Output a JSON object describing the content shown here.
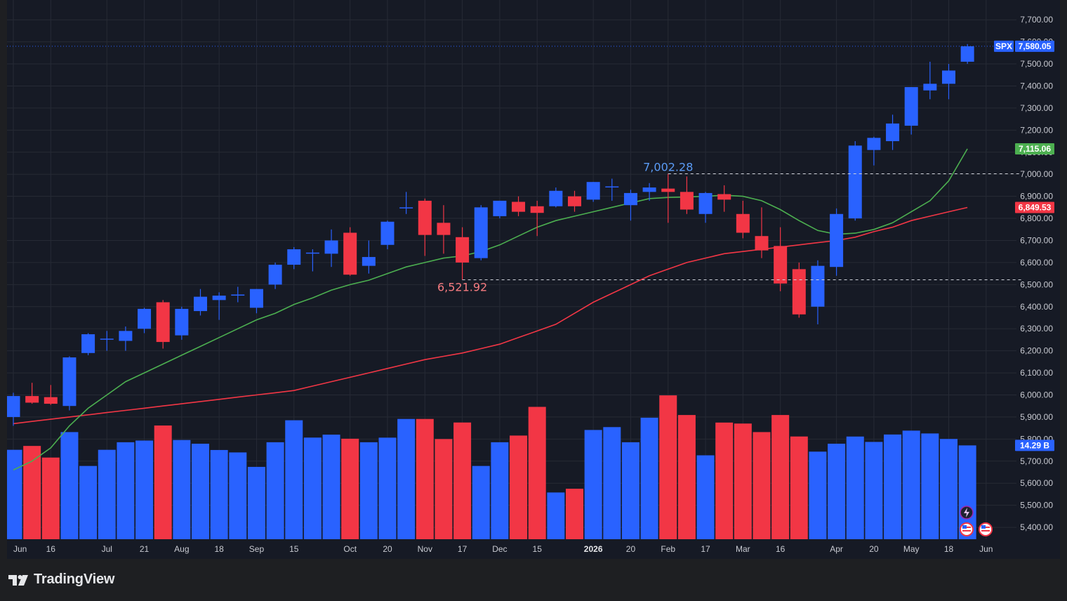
{
  "branding": {
    "name": "TradingView"
  },
  "colors": {
    "up": "#2962ff",
    "down": "#f23645",
    "ma_short": "#4caf50",
    "ma_long": "#f23645",
    "grid": "#262a35",
    "axis_text": "#c9cbd2",
    "background": "#161a25"
  },
  "chart_data": {
    "type": "candlestick",
    "symbol": "SPX",
    "y_ticks": [
      "7,700.00",
      "7,600.00",
      "7,500.00",
      "7,400.00",
      "7,300.00",
      "7,200.00",
      "7,100.00",
      "7,000.00",
      "6,900.00",
      "6,800.00",
      "6,700.00",
      "6,600.00",
      "6,500.00",
      "6,400.00",
      "6,300.00",
      "6,200.00",
      "6,100.00",
      "6,000.00",
      "5,900.00",
      "5,800.00",
      "5,700.00",
      "5,600.00",
      "5,500.00",
      "5,400.00"
    ],
    "ylim": [
      5360,
      7770
    ],
    "x_ticks": [
      {
        "label": "Jun",
        "i": 0
      },
      {
        "label": "16",
        "i": 2
      },
      {
        "label": "Jul",
        "i": 5
      },
      {
        "label": "21",
        "i": 7
      },
      {
        "label": "Aug",
        "i": 9
      },
      {
        "label": "18",
        "i": 11
      },
      {
        "label": "Sep",
        "i": 13
      },
      {
        "label": "15",
        "i": 15
      },
      {
        "label": "Oct",
        "i": 18
      },
      {
        "label": "20",
        "i": 20
      },
      {
        "label": "Nov",
        "i": 22
      },
      {
        "label": "17",
        "i": 24
      },
      {
        "label": "Dec",
        "i": 26
      },
      {
        "label": "15",
        "i": 28
      },
      {
        "label": "2026",
        "i": 31,
        "year": true
      },
      {
        "label": "20",
        "i": 33
      },
      {
        "label": "Feb",
        "i": 35
      },
      {
        "label": "17",
        "i": 37
      },
      {
        "label": "Mar",
        "i": 39
      },
      {
        "label": "16",
        "i": 41
      },
      {
        "label": "Apr",
        "i": 44
      },
      {
        "label": "20",
        "i": 46
      },
      {
        "label": "May",
        "i": 48
      },
      {
        "label": "18",
        "i": 50
      },
      {
        "label": "Jun",
        "i": 52
      }
    ],
    "candles": [
      {
        "o": 5900,
        "h": 6010,
        "l": 5860,
        "c": 5995,
        "v": 13.62
      },
      {
        "o": 5995,
        "h": 6055,
        "l": 5960,
        "c": 5965,
        "v": 14.21
      },
      {
        "o": 5990,
        "h": 6045,
        "l": 5955,
        "c": 5960,
        "v": 12.44
      },
      {
        "o": 5950,
        "h": 6175,
        "l": 5930,
        "c": 6170,
        "v": 16.32
      },
      {
        "o": 6190,
        "h": 6280,
        "l": 6180,
        "c": 6275,
        "v": 11.16
      },
      {
        "o": 6255,
        "h": 6290,
        "l": 6200,
        "c": 6255,
        "v": 13.62
      },
      {
        "o": 6245,
        "h": 6310,
        "l": 6200,
        "c": 6290,
        "v": 14.77
      },
      {
        "o": 6300,
        "h": 6395,
        "l": 6280,
        "c": 6390,
        "v": 15.03
      },
      {
        "o": 6420,
        "h": 6430,
        "l": 6210,
        "c": 6240,
        "v": 17.32
      },
      {
        "o": 6270,
        "h": 6400,
        "l": 6250,
        "c": 6390,
        "v": 15.11
      },
      {
        "o": 6380,
        "h": 6480,
        "l": 6360,
        "c": 6445,
        "v": 14.55
      },
      {
        "o": 6430,
        "h": 6465,
        "l": 6340,
        "c": 6450,
        "v": 13.59
      },
      {
        "o": 6450,
        "h": 6490,
        "l": 6420,
        "c": 6455,
        "v": 13.22
      },
      {
        "o": 6395,
        "h": 6480,
        "l": 6370,
        "c": 6480,
        "v": 11.02
      },
      {
        "o": 6500,
        "h": 6600,
        "l": 6480,
        "c": 6590,
        "v": 14.77
      },
      {
        "o": 6590,
        "h": 6670,
        "l": 6570,
        "c": 6660,
        "v": 18.12
      },
      {
        "o": 6645,
        "h": 6660,
        "l": 6560,
        "c": 6645,
        "v": 15.48
      },
      {
        "o": 6640,
        "h": 6750,
        "l": 6580,
        "c": 6700,
        "v": 15.93
      },
      {
        "o": 6735,
        "h": 6760,
        "l": 6540,
        "c": 6545,
        "v": 15.31
      },
      {
        "o": 6585,
        "h": 6700,
        "l": 6550,
        "c": 6625,
        "v": 14.77
      },
      {
        "o": 6680,
        "h": 6790,
        "l": 6660,
        "c": 6785,
        "v": 15.47
      },
      {
        "o": 6850,
        "h": 6920,
        "l": 6820,
        "c": 6850,
        "v": 18.32
      },
      {
        "o": 6880,
        "h": 6890,
        "l": 6630,
        "c": 6725,
        "v": 18.32
      },
      {
        "o": 6780,
        "h": 6860,
        "l": 6640,
        "c": 6725,
        "v": 15.26
      },
      {
        "o": 6715,
        "h": 6760,
        "l": 6521.92,
        "c": 6600,
        "v": 17.78
      },
      {
        "o": 6620,
        "h": 6860,
        "l": 6610,
        "c": 6850,
        "v": 11.16
      },
      {
        "o": 6810,
        "h": 6880,
        "l": 6800,
        "c": 6880,
        "v": 14.77
      },
      {
        "o": 6875,
        "h": 6900,
        "l": 6810,
        "c": 6830,
        "v": 15.79
      },
      {
        "o": 6855,
        "h": 6880,
        "l": 6720,
        "c": 6825,
        "v": 20.16
      },
      {
        "o": 6855,
        "h": 6940,
        "l": 6850,
        "c": 6925,
        "v": 7.12
      },
      {
        "o": 6900,
        "h": 6925,
        "l": 6830,
        "c": 6855,
        "v": 7.69
      },
      {
        "o": 6885,
        "h": 6965,
        "l": 6875,
        "c": 6965,
        "v": 16.64
      },
      {
        "o": 6945,
        "h": 6980,
        "l": 6880,
        "c": 6945,
        "v": 17.08
      },
      {
        "o": 6860,
        "h": 6930,
        "l": 6790,
        "c": 6915,
        "v": 14.77
      },
      {
        "o": 6920,
        "h": 6960,
        "l": 6880,
        "c": 6940,
        "v": 18.51
      },
      {
        "o": 6935,
        "h": 7002.28,
        "l": 6780,
        "c": 6920,
        "v": 21.91
      },
      {
        "o": 6920,
        "h": 6990,
        "l": 6820,
        "c": 6840,
        "v": 18.92
      },
      {
        "o": 6820,
        "h": 6920,
        "l": 6780,
        "c": 6915,
        "v": 12.78
      },
      {
        "o": 6910,
        "h": 6950,
        "l": 6830,
        "c": 6885,
        "v": 17.77
      },
      {
        "o": 6820,
        "h": 6880,
        "l": 6710,
        "c": 6735,
        "v": 17.62
      },
      {
        "o": 6720,
        "h": 6850,
        "l": 6620,
        "c": 6655,
        "v": 16.32
      },
      {
        "o": 6675,
        "h": 6760,
        "l": 6470,
        "c": 6505,
        "v": 18.92
      },
      {
        "o": 6570,
        "h": 6600,
        "l": 6350,
        "c": 6365,
        "v": 15.65
      },
      {
        "o": 6400,
        "h": 6610,
        "l": 6320,
        "c": 6585,
        "v": 13.34
      },
      {
        "o": 6580,
        "h": 6845,
        "l": 6540,
        "c": 6820,
        "v": 14.55
      },
      {
        "o": 6800,
        "h": 7150,
        "l": 6790,
        "c": 7130,
        "v": 15.64
      },
      {
        "o": 7110,
        "h": 7170,
        "l": 7040,
        "c": 7165,
        "v": 14.82
      },
      {
        "o": 7150,
        "h": 7270,
        "l": 7110,
        "c": 7230,
        "v": 15.95
      },
      {
        "o": 7220,
        "h": 7395,
        "l": 7180,
        "c": 7395,
        "v": 16.54
      },
      {
        "o": 7380,
        "h": 7510,
        "l": 7340,
        "c": 7410,
        "v": 16.11
      },
      {
        "o": 7410,
        "h": 7500,
        "l": 7340,
        "c": 7470,
        "v": 15.27
      },
      {
        "o": 7510,
        "h": 7590,
        "l": 7500,
        "c": 7580.05,
        "v": 14.29
      }
    ],
    "ma_short": [
      5660,
      5700,
      5760,
      5860,
      5940,
      6000,
      6060,
      6100,
      6140,
      6180,
      6220,
      6260,
      6300,
      6340,
      6370,
      6410,
      6440,
      6475,
      6500,
      6520,
      6550,
      6580,
      6600,
      6620,
      6630,
      6650,
      6680,
      6720,
      6760,
      6790,
      6810,
      6830,
      6850,
      6870,
      6890,
      6895,
      6897,
      6900,
      6905,
      6900,
      6880,
      6840,
      6790,
      6745,
      6728,
      6733,
      6750,
      6780,
      6830,
      6880,
      6970,
      7115.06
    ],
    "ma_short_start": 0,
    "ma_long": [
      5870,
      5880,
      5890,
      5900,
      5910,
      5920,
      5930,
      5940,
      5950,
      5960,
      5970,
      5980,
      5990,
      6000,
      6010,
      6020,
      6040,
      6060,
      6080,
      6100,
      6120,
      6140,
      6160,
      6175,
      6190,
      6210,
      6230,
      6260,
      6290,
      6320,
      6370,
      6420,
      6460,
      6500,
      6540,
      6570,
      6600,
      6620,
      6640,
      6650,
      6660,
      6670,
      6680,
      6690,
      6700,
      6715,
      6740,
      6760,
      6790,
      6810,
      6830,
      6849.53
    ],
    "price_tags": [
      {
        "label": "SPX",
        "value": 7580.05,
        "text": "7,580.05",
        "color": "#2962ff"
      },
      {
        "label": "",
        "value": 7115.06,
        "text": "7,115.06",
        "color": "#4caf50"
      },
      {
        "label": "",
        "value": 6849.53,
        "text": "6,849.53",
        "color": "#f23645"
      }
    ],
    "volume_label": "14.29 B",
    "annotations": [
      {
        "text": "7,002.28",
        "value": 7002.28,
        "i": 35,
        "color": "#5b9cf6",
        "pos": "above",
        "line_to_axis": true
      },
      {
        "text": "6,521.92",
        "value": 6521.92,
        "i": 24,
        "color": "#f77c80",
        "pos": "below",
        "line_to_axis": true
      }
    ],
    "legend": "none",
    "grid": true
  }
}
